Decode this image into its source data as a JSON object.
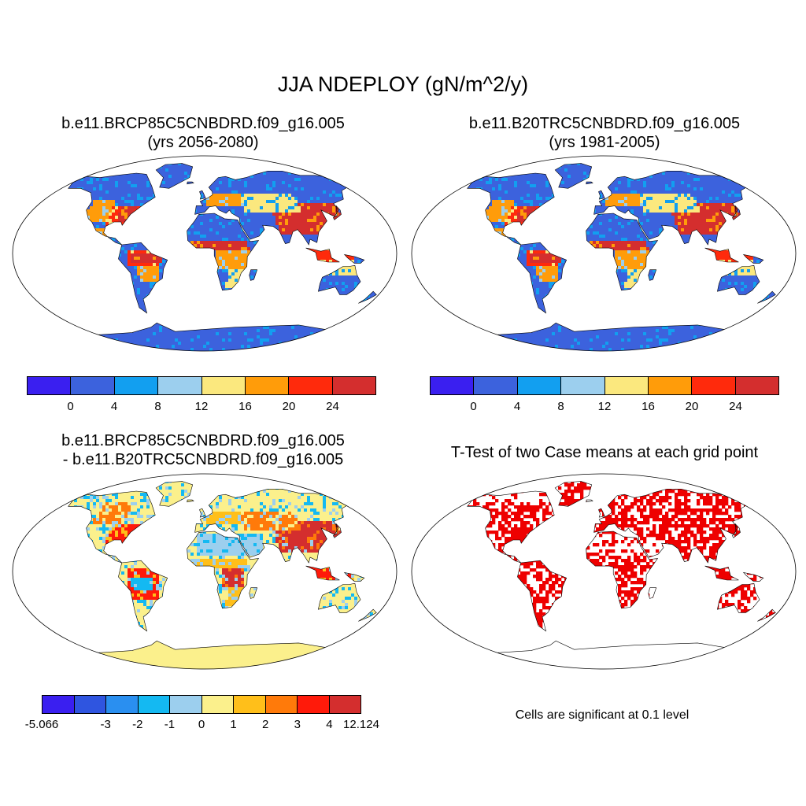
{
  "figure": {
    "title": "JJA NDEPLOY (gN/m^2/y)"
  },
  "panels": {
    "top_left": {
      "title_line1": "b.e11.BRCP85C5CNBDRD.f09_g16.005",
      "title_line2": "(yrs 2056-2080)"
    },
    "top_right": {
      "title_line1": "b.e11.B20TRC5CNBDRD.f09_g16.005",
      "title_line2": "(yrs 1981-2005)"
    },
    "bottom_left": {
      "title_line1": "b.e11.BRCP85C5CNBDRD.f09_g16.005",
      "title_line2": "- b.e11.B20TRC5CNBDRD.f09_g16.005"
    },
    "bottom_right": {
      "title": "T-Test of two Case means at each grid point",
      "note": "Cells are significant at 0.1 level"
    }
  },
  "colorbars": {
    "absolute": {
      "colors": [
        "#3a1ff0",
        "#3c62dd",
        "#129ff0",
        "#9ccfee",
        "#fbe87e",
        "#ff9c0a",
        "#ff2a0c",
        "#d42e2e"
      ],
      "tick_labels": [
        "0",
        "4",
        "8",
        "12",
        "16",
        "20",
        "24"
      ]
    },
    "difference": {
      "colors": [
        "#3a1ff0",
        "#2f55e0",
        "#2a8ff0",
        "#14b9f2",
        "#9ccfee",
        "#fbf08c",
        "#ffbf1a",
        "#ff7a0a",
        "#ff1a0a",
        "#d42e2e"
      ],
      "tick_labels": [
        "-5.066",
        "-3",
        "-2",
        "-1",
        "0",
        "1",
        "2",
        "3",
        "4",
        "12.124"
      ]
    }
  },
  "significance_color": "#ee0000"
}
